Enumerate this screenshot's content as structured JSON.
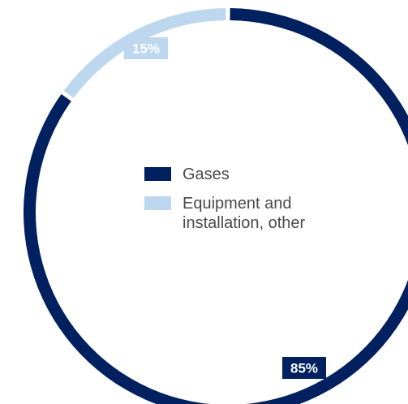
{
  "chart_data": {
    "type": "pie",
    "style": "donut",
    "categories": [
      "Gases",
      "Equipment and installation, other"
    ],
    "values": [
      85,
      15
    ],
    "unit": "%",
    "data_labels": [
      "85%",
      "15%"
    ],
    "colors": [
      "#002060",
      "#bdd7ee"
    ],
    "label_background_colors": [
      "#002060",
      "#bdd7ee"
    ],
    "start_angle_deg": 0,
    "direction": "clockwise",
    "legend": {
      "placement": "center",
      "items": [
        {
          "label": "Gases",
          "color": "#002060"
        },
        {
          "label": "Equipment and installation, other",
          "color": "#bdd7ee"
        }
      ]
    }
  }
}
